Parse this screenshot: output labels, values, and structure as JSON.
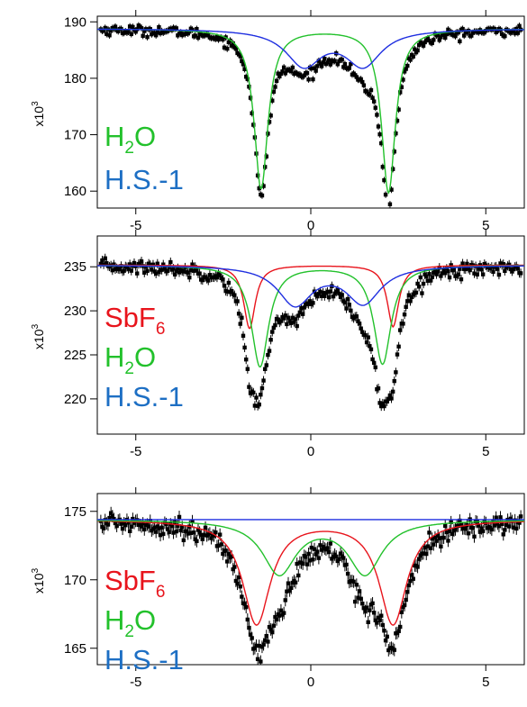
{
  "chart_data": [
    {
      "type": "line",
      "title": "",
      "xlabel": "",
      "ylabel": "x10^3",
      "ylabel_base": "x10",
      "ylabel_exp": "3",
      "xlim": [
        -6.1,
        6.1
      ],
      "ylim": [
        157,
        191
      ],
      "xticks": [
        -5,
        0,
        5
      ],
      "xtick_labels": [
        "-5",
        "0",
        "5"
      ],
      "yticks": [
        160,
        170,
        180,
        190
      ],
      "ytick_labels": [
        "160",
        "170",
        "180",
        "190"
      ],
      "grid": false,
      "legend": {
        "placement": "bottom-left",
        "entries": [
          {
            "main": "H",
            "sub": "2",
            "tail": "O",
            "color": "#22c12b"
          },
          {
            "main": "H.S.-1",
            "sub": "",
            "tail": "",
            "color": "#1d6fc4"
          }
        ]
      },
      "series": [
        {
          "color": "#22c12b",
          "baseline": 188.8,
          "peaks": [
            {
              "x": -1.42,
              "depth": 28.3,
              "w": 0.24
            },
            {
              "x": 2.22,
              "depth": 29.0,
              "w": 0.24
            }
          ]
        },
        {
          "color": "#1f2fe0",
          "baseline": 188.8,
          "peaks": [
            {
              "x": -0.2,
              "depth": 6.3,
              "w": 0.62
            },
            {
              "x": 1.5,
              "depth": 6.3,
              "w": 0.62
            }
          ]
        }
      ],
      "fit_total": {
        "baseline": 188.8,
        "peaks": [
          {
            "x": -1.42,
            "depth": 28.3,
            "w": 0.24
          },
          {
            "x": 2.22,
            "depth": 29.0,
            "w": 0.24
          },
          {
            "x": -0.2,
            "depth": 6.3,
            "w": 0.62
          },
          {
            "x": 1.5,
            "depth": 6.3,
            "w": 0.62
          }
        ]
      },
      "data_points": {
        "xmin": -6.0,
        "xmax": 6.0,
        "count": 290,
        "noise": 0.45
      }
    },
    {
      "type": "line",
      "title": "",
      "xlabel": "",
      "ylabel": "x10^3",
      "ylabel_base": "x10",
      "ylabel_exp": "3",
      "xlim": [
        -6.1,
        6.1
      ],
      "ylim": [
        216,
        238.5
      ],
      "xticks": [
        -5,
        0,
        5
      ],
      "xtick_labels": [
        "-5",
        "0",
        "5"
      ],
      "yticks": [
        220,
        225,
        230,
        235
      ],
      "ytick_labels": [
        "220",
        "225",
        "230",
        "235"
      ],
      "grid": false,
      "legend": {
        "placement": "bottom-left",
        "entries": [
          {
            "main": "SbF",
            "sub": "6",
            "tail": "",
            "color": "#e8141c"
          },
          {
            "main": "H",
            "sub": "2",
            "tail": "O",
            "color": "#22c12b"
          },
          {
            "main": "H.S.-1",
            "sub": "",
            "tail": "",
            "color": "#1d6fc4"
          }
        ]
      },
      "series": [
        {
          "color": "#e8141c",
          "baseline": 235.2,
          "peaks": [
            {
              "x": -1.75,
              "depth": 7.2,
              "w": 0.2
            },
            {
              "x": 2.35,
              "depth": 7.0,
              "w": 0.2
            }
          ]
        },
        {
          "color": "#22c12b",
          "baseline": 235.2,
          "peaks": [
            {
              "x": -1.45,
              "depth": 11.5,
              "w": 0.3
            },
            {
              "x": 2.05,
              "depth": 11.2,
              "w": 0.3
            }
          ]
        },
        {
          "color": "#1f2fe0",
          "baseline": 235.2,
          "peaks": [
            {
              "x": -0.45,
              "depth": 4.4,
              "w": 0.6
            },
            {
              "x": 1.5,
              "depth": 4.2,
              "w": 0.6
            }
          ]
        }
      ],
      "fit_total": {
        "baseline": 235.2,
        "peaks": [
          {
            "x": -1.75,
            "depth": 7.2,
            "w": 0.2
          },
          {
            "x": 2.35,
            "depth": 7.0,
            "w": 0.2
          },
          {
            "x": -1.45,
            "depth": 11.5,
            "w": 0.3
          },
          {
            "x": 2.05,
            "depth": 11.2,
            "w": 0.3
          },
          {
            "x": -0.45,
            "depth": 4.4,
            "w": 0.6
          },
          {
            "x": 1.5,
            "depth": 4.2,
            "w": 0.6
          }
        ]
      },
      "data_points": {
        "xmin": -6.0,
        "xmax": 6.0,
        "count": 290,
        "noise": 0.4
      }
    },
    {
      "type": "line",
      "title": "",
      "xlabel": "",
      "ylabel": "x10^3",
      "ylabel_base": "x10",
      "ylabel_exp": "3",
      "xlim": [
        -6.1,
        6.1
      ],
      "ylim": [
        163.8,
        176.3
      ],
      "xticks": [
        -5,
        0,
        5
      ],
      "xtick_labels": [
        "-5",
        "0",
        "5"
      ],
      "yticks": [
        165,
        170,
        175
      ],
      "ytick_labels": [
        "165",
        "170",
        "175"
      ],
      "grid": false,
      "legend": {
        "placement": "bottom-left",
        "entries": [
          {
            "main": "SbF",
            "sub": "6",
            "tail": "",
            "color": "#e8141c"
          },
          {
            "main": "H",
            "sub": "2",
            "tail": "O",
            "color": "#22c12b"
          },
          {
            "main": "H.S.-1",
            "sub": "",
            "tail": "",
            "color": "#1d6fc4"
          }
        ]
      },
      "series": [
        {
          "color": "#e8141c",
          "baseline": 174.4,
          "peaks": [
            {
              "x": -1.55,
              "depth": 7.6,
              "w": 0.48
            },
            {
              "x": 2.35,
              "depth": 7.6,
              "w": 0.48
            }
          ]
        },
        {
          "color": "#22c12b",
          "baseline": 174.4,
          "peaks": [
            {
              "x": -0.9,
              "depth": 3.9,
              "w": 0.58
            },
            {
              "x": 1.55,
              "depth": 3.9,
              "w": 0.58
            }
          ]
        },
        {
          "color": "#1f2fe0",
          "baseline": 174.4,
          "peaks": []
        }
      ],
      "fit_total": {
        "baseline": 174.4,
        "peaks": [
          {
            "x": -1.55,
            "depth": 7.6,
            "w": 0.48
          },
          {
            "x": 2.35,
            "depth": 7.6,
            "w": 0.48
          },
          {
            "x": -0.9,
            "depth": 3.9,
            "w": 0.58
          },
          {
            "x": 1.55,
            "depth": 3.9,
            "w": 0.58
          }
        ]
      },
      "data_points": {
        "xmin": -6.0,
        "xmax": 6.0,
        "count": 290,
        "noise": 0.35
      }
    }
  ]
}
